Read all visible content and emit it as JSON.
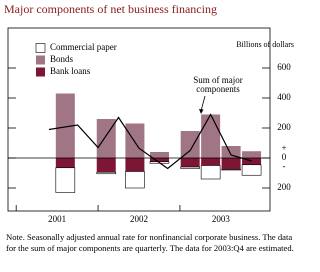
{
  "chart_data": {
    "type": "bar",
    "title": "Major components of net business financing",
    "y_axis_label": "Billions of dollars",
    "sign_labels": [
      "+",
      "-"
    ],
    "annotation": [
      "Sum of major",
      "components"
    ],
    "x": [
      2001.6,
      2002.1,
      2002.45,
      2002.75,
      2003.125,
      2003.375,
      2003.625,
      2003.875
    ],
    "series": [
      {
        "name": "Commercial paper",
        "color": "#ffffff",
        "values": [
          -165,
          -10,
          -110,
          -10,
          -10,
          -90,
          -5,
          -70
        ]
      },
      {
        "name": "Bonds",
        "color": "#a07585",
        "values": [
          430,
          260,
          230,
          40,
          180,
          290,
          80,
          45
        ]
      },
      {
        "name": "Bank loans",
        "color": "#7d1535",
        "values": [
          -65,
          -95,
          -90,
          -25,
          -60,
          -50,
          -75,
          -45
        ]
      }
    ],
    "line": {
      "x": [
        2001.4,
        2001.75,
        2002.0,
        2002.25,
        2002.5,
        2002.85,
        2003.125,
        2003.375,
        2003.625,
        2003.875
      ],
      "values": [
        190,
        220,
        70,
        270,
        65,
        -70,
        50,
        290,
        20,
        -20
      ]
    },
    "xlim": [
      2000.9,
      2004.1
    ],
    "xticks": [
      {
        "value": 2001.5,
        "label": "2001"
      },
      {
        "value": 2002.5,
        "label": "2002"
      },
      {
        "value": 2003.5,
        "label": "2003"
      }
    ],
    "ylim": [
      -300,
      700
    ],
    "yticks": [
      {
        "value": -200,
        "label": "200"
      },
      0,
      200,
      400,
      600
    ],
    "note": "Note. Seasonally adjusted annual rate for nonfinancial corporate business. The data for the sum of major components are quarterly. The data for 2003:Q4 are estimated."
  }
}
